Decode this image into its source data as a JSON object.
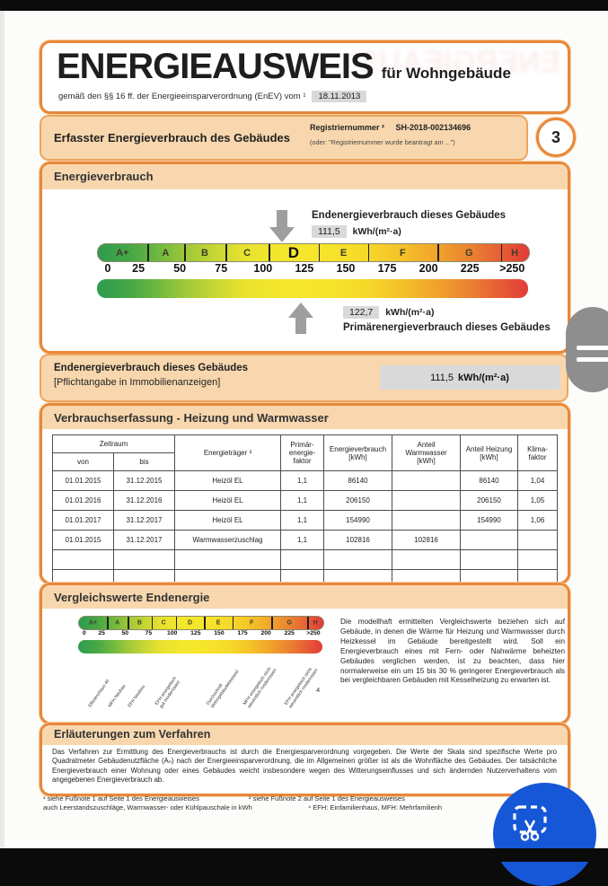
{
  "masthead": {
    "title": "ENERGIEAUSWEIS",
    "subtitle": "für Wohngebäude",
    "law_text": "gemäß den §§ 16 ff. der Energieeinsparverordnung (EnEV) vom ¹",
    "law_date": "18.11.2013"
  },
  "section_bar": {
    "title": "Erfasster Energieverbrauch des Gebäudes",
    "registry_label": "Registriernummer ²",
    "registry_value": "SH-2018-002134696",
    "registry_note": "(oder: \"Registriernummer wurde beantragt am ...\")",
    "page_number": "3"
  },
  "consumption": {
    "title": "Energieverbrauch",
    "end_energy_label": "Endenergieverbrauch dieses Gebäudes",
    "end_energy_value": "111,5",
    "end_energy_unit": "kWh/(m²·a)",
    "primary_value": "122,7",
    "primary_unit": "kWh/(m²·a)",
    "primary_label": "Primärenergieverbrauch dieses Gebäudes",
    "scale_letters": [
      "A+",
      "A",
      "B",
      "C",
      "D",
      "E",
      "F",
      "G",
      "H"
    ],
    "scale_ticks": [
      "0",
      "25",
      "50",
      "75",
      "100",
      "125",
      "150",
      "175",
      "200",
      "225",
      ">250"
    ],
    "highlight_letter": "D"
  },
  "banner": {
    "line1": "Endenergieverbrauch dieses Gebäudes",
    "line2": "[Pflichtangabe in Immobilienanzeigen]",
    "value": "111,5",
    "unit": "kWh/(m²·a)"
  },
  "usage_table": {
    "title": "Verbrauchserfassung - Heizung und Warmwasser",
    "col_zeitraum": "Zeitraum",
    "col_von": "von",
    "col_bis": "bis",
    "col_energietraeger": "Energieträger ³",
    "col_pef": "Primär-\nenergie-\nfaktor",
    "col_verbrauch": "Energieverbrauch\n[kWh]",
    "col_warmwasser": "Anteil\nWarmwasser\n[kWh]",
    "col_heizung": "Anteil Heizung\n[kWh]",
    "col_klima": "Klima-\nfaktor",
    "rows": [
      [
        "01.01.2015",
        "31.12.2015",
        "Heizöl EL",
        "1,1",
        "86140",
        "",
        "86140",
        "1,04"
      ],
      [
        "01.01.2016",
        "31.12.2016",
        "Heizöl EL",
        "1,1",
        "206150",
        "",
        "206150",
        "1,05"
      ],
      [
        "01.01.2017",
        "31.12.2017",
        "Heizöl EL",
        "1,1",
        "154990",
        "",
        "154990",
        "1,06"
      ],
      [
        "01.01.2015",
        "31.12.2017",
        "Warmwasserzuschlag",
        "1,1",
        "102816",
        "102816",
        "",
        ""
      ],
      [
        "",
        "",
        "",
        "",
        "",
        "",
        "",
        ""
      ],
      [
        "",
        "",
        "",
        "",
        "",
        "",
        "",
        ""
      ]
    ]
  },
  "comparison": {
    "title": "Vergleichswerte Endenergie",
    "scale_letters": [
      "A+",
      "A",
      "B",
      "C",
      "D",
      "E",
      "F",
      "G",
      "H"
    ],
    "scale_ticks": [
      "0",
      "25",
      "50",
      "75",
      "100",
      "125",
      "150",
      "175",
      "200",
      "225",
      ">250"
    ],
    "bar_labels": [
      "Effizienzhaus 40",
      "MFH Neubau",
      "EFH Neubau",
      "EFH energetisch\ngut modernisiert",
      "Durchschnitt\nWohngebäudebestand",
      "MFH energetisch nicht\nwesentlich modernisiert",
      "EFH energetisch nicht\nwesentlich modernisiert"
    ],
    "footnote_ref": "4",
    "paragraph": "Die modellhaft ermittelten Vergleichswerte beziehen sich auf Gebäude, in denen die Wärme für Heizung und Warmwasser durch Heizkessel im Gebäude bereitgestellt wird. Soll ein Energieverbrauch eines mit Fern- oder Nahwärme beheizten Gebäudes verglichen werden, ist zu beachten, dass hier normalerweise ein um 15 bis 30 % geringerer Energieverbrauch als bei vergleichbaren Gebäuden mit Kesselheizung zu erwarten ist."
  },
  "explanation": {
    "title": "Erläuterungen zum Verfahren",
    "paragraph": "Das Verfahren zur Ermittlung des Energieverbrauchs ist durch die Energiesparverordnung vorgegeben. Die Werte der Skala sind spezifische Werte pro Quadratmeter Gebäudenutzfläche (Aₙ) nach der Energieeinsparverordnung, die im Allgemeinen größer ist als die Wohnfläche des Gebäudes. Der tatsächliche Energieverbrauch einer Wohnung oder eines Gebäudes weicht insbesondere wegen des Witterungseinflusses und sich ändernden Nutzerverhaltens vom angegebenen Energieverbrauch ab."
  },
  "footnotes": {
    "fn1": "¹ siehe Fußnote 1 auf Seite 1 des Energieausweises",
    "fn2": "² siehe Fußnote 2 auf Seite 1 des Energieausweises",
    "fn3": "auch Leerstandszuschläge, Warmwasser- oder Kühlpauschale in kWh",
    "fn4": "⁴ EFH: Einfamilienhaus, MFH: Mehrfamilienh"
  },
  "colors": {
    "accent_orange": "#e8873a",
    "peach": "#f8d7ae",
    "fab_blue": "#1657d8",
    "handle_gray": "#8e8e8e"
  },
  "overlay": {
    "fab_icon": "screenshot-crop",
    "handle": "side-panel-handle"
  }
}
